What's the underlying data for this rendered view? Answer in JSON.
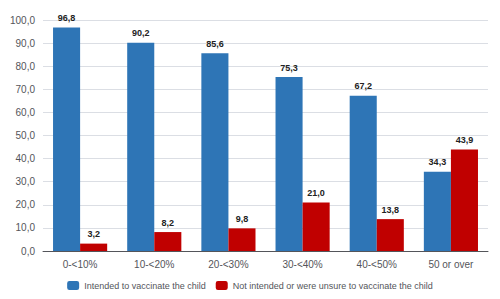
{
  "chart_data": {
    "type": "bar",
    "categories": [
      "0-<10%",
      "10-<20%",
      "20-<30%",
      "30-<40%",
      "40-<50%",
      "50 or over"
    ],
    "series": [
      {
        "name": "Intended to vaccinate the child",
        "color": "#2e75b6",
        "values": [
          96.8,
          90.2,
          85.6,
          75.3,
          67.2,
          34.3
        ],
        "value_labels": [
          "96,8",
          "90,2",
          "85,6",
          "75,3",
          "67,2",
          "34,3"
        ]
      },
      {
        "name": "Not intended or were unsure to vaccinate the child",
        "color": "#c00000",
        "values": [
          3.2,
          8.2,
          9.8,
          21.0,
          13.8,
          43.9
        ],
        "value_labels": [
          "3,2",
          "8,2",
          "9,8",
          "21,0",
          "13,8",
          "43,9"
        ]
      }
    ],
    "ylim": [
      0,
      100
    ],
    "yticks": [
      {
        "value": 0,
        "label": "0,0"
      },
      {
        "value": 10,
        "label": "10,0"
      },
      {
        "value": 20,
        "label": "20,0"
      },
      {
        "value": 30,
        "label": "30,0"
      },
      {
        "value": 40,
        "label": "40,0"
      },
      {
        "value": 50,
        "label": "50,0"
      },
      {
        "value": 60,
        "label": "60,0"
      },
      {
        "value": 70,
        "label": "70,0"
      },
      {
        "value": 80,
        "label": "80,0"
      },
      {
        "value": 90,
        "label": "90,0"
      },
      {
        "value": 100,
        "label": "100,0"
      }
    ],
    "grid": true,
    "legend": "bottom",
    "data_labels": true
  }
}
